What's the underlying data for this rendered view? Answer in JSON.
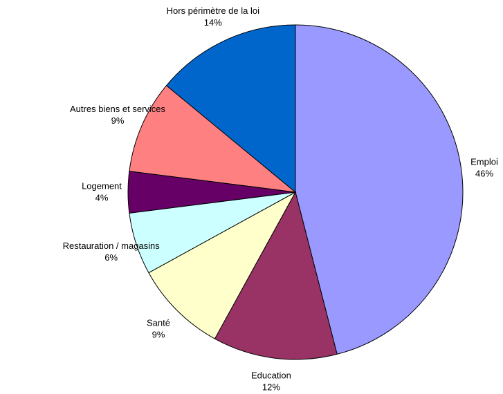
{
  "chart_data": {
    "type": "pie",
    "categories": [
      "Emploi",
      "Education",
      "Santé",
      "Restauration / magasins",
      "Logement",
      "Autres biens et services",
      "Hors périmètre de la loi"
    ],
    "values": [
      46,
      12,
      9,
      6,
      4,
      9,
      14
    ],
    "value_labels": [
      "46%",
      "12%",
      "9%",
      "6%",
      "4%",
      "9%",
      "14%"
    ],
    "colors": [
      "#9999ff",
      "#993366",
      "#ffffcc",
      "#ccffff",
      "#660066",
      "#ff8080",
      "#0066cc"
    ]
  }
}
